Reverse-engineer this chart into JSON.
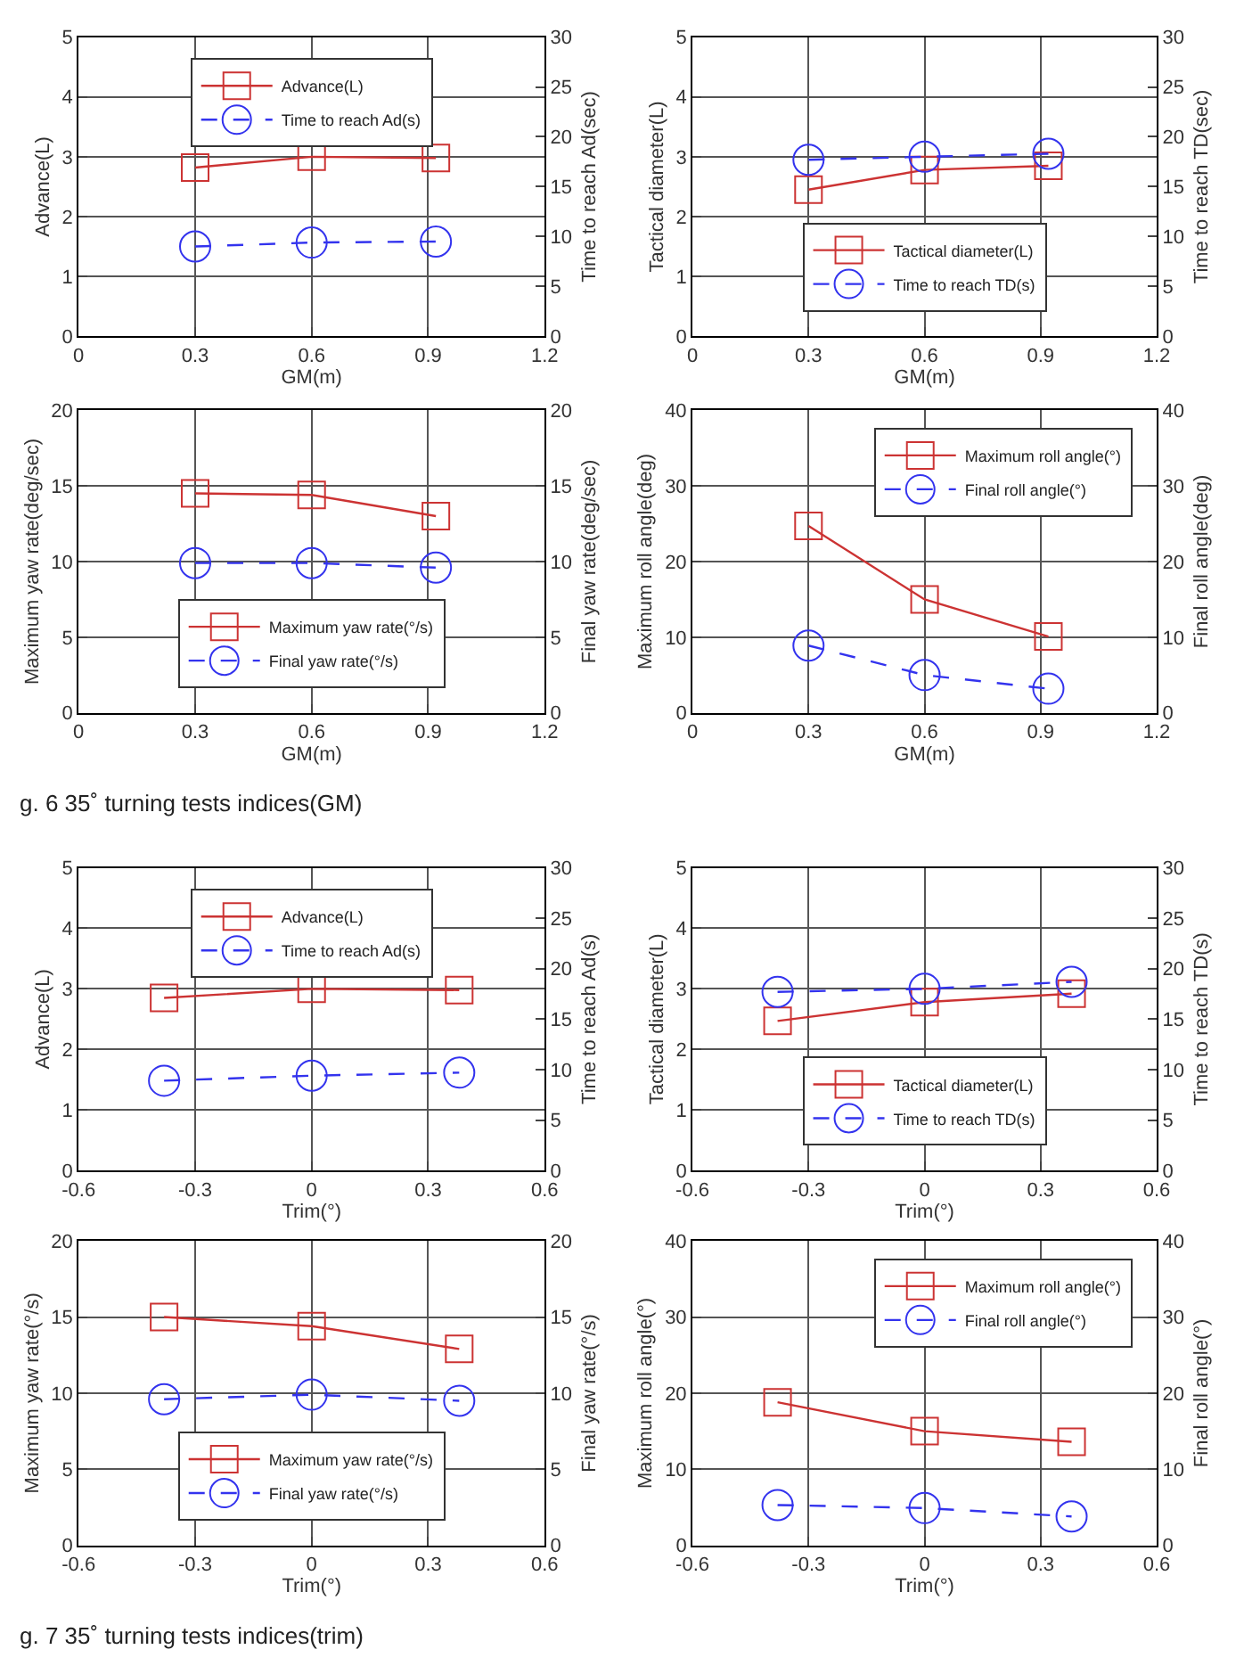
{
  "chart_data": [
    {
      "type": "line",
      "x": [
        0.3,
        0.6,
        0.92
      ],
      "xlabel": "GM(m)",
      "ylabel": "Advance(L)",
      "y2label": "Time to reach Ad(sec)",
      "xlim": [
        0,
        1.2
      ],
      "xticks": [
        0,
        0.3,
        0.6,
        0.9,
        1.2
      ],
      "ylim": [
        0,
        5
      ],
      "yticks": [
        0,
        1,
        2,
        3,
        4,
        5
      ],
      "y2lim": [
        0,
        30
      ],
      "y2ticks": [
        0,
        5,
        10,
        15,
        20,
        25,
        30
      ],
      "grid": true,
      "legend": "top",
      "series": [
        {
          "name": "Advance(L)",
          "color": "#cc3333",
          "values": [
            2.82,
            3.0,
            2.98
          ],
          "marker": "square",
          "line_style": "solid"
        },
        {
          "name": "Time to reach Ad(s)",
          "color": "#3333ee",
          "values": [
            9.0,
            9.4,
            9.5
          ],
          "marker": "circle",
          "line_style": "dashed",
          "axis": "y2"
        }
      ]
    },
    {
      "type": "line",
      "x": [
        0.3,
        0.6,
        0.92
      ],
      "xlabel": "GM(m)",
      "ylabel": "Tactical diameter(L)",
      "y2label": "Time to reach TD(sec)",
      "xlim": [
        0,
        1.2
      ],
      "xticks": [
        0,
        0.3,
        0.6,
        0.9,
        1.2
      ],
      "ylim": [
        0,
        5
      ],
      "yticks": [
        0,
        1,
        2,
        3,
        4,
        5
      ],
      "y2lim": [
        0,
        30
      ],
      "y2ticks": [
        0,
        5,
        10,
        15,
        20,
        25,
        30
      ],
      "grid": true,
      "legend": "bottom",
      "series": [
        {
          "name": "Tactical diameter(L)",
          "color": "#cc3333",
          "values": [
            2.45,
            2.78,
            2.85
          ],
          "marker": "square",
          "line_style": "solid"
        },
        {
          "name": "Time to reach TD(s)",
          "color": "#3333ee",
          "values": [
            17.7,
            18.0,
            18.3
          ],
          "marker": "circle",
          "line_style": "dashed",
          "axis": "y2"
        }
      ]
    },
    {
      "type": "line",
      "x": [
        0.3,
        0.6,
        0.92
      ],
      "xlabel": "GM(m)",
      "ylabel": "Maximum yaw rate(deg/sec)",
      "y2label": "Final yaw rate(deg/sec)",
      "xlim": [
        0,
        1.2
      ],
      "xticks": [
        0,
        0.3,
        0.6,
        0.9,
        1.2
      ],
      "ylim": [
        0,
        20
      ],
      "yticks": [
        0,
        5,
        10,
        15,
        20
      ],
      "y2lim": [
        0,
        20
      ],
      "y2ticks": [
        0,
        5,
        10,
        15,
        20
      ],
      "grid": true,
      "legend": "bottom",
      "annotations": [
        "g. 6 35˚ turning tests indices(GM)"
      ],
      "series": [
        {
          "name": "Maximum yaw rate(°/s)",
          "color": "#cc3333",
          "values": [
            14.5,
            14.4,
            13.0
          ],
          "marker": "square",
          "line_style": "solid"
        },
        {
          "name": "Final yaw rate(°/s)",
          "color": "#3333ee",
          "values": [
            9.9,
            9.9,
            9.6
          ],
          "marker": "circle",
          "line_style": "dashed",
          "axis": "y2"
        }
      ]
    },
    {
      "type": "line",
      "x": [
        0.3,
        0.6,
        0.92
      ],
      "xlabel": "GM(m)",
      "ylabel": "Maximum roll angle(deg)",
      "y2label": "Final roll angle(deg)",
      "xlim": [
        0,
        1.2
      ],
      "xticks": [
        0,
        0.3,
        0.6,
        0.9,
        1.2
      ],
      "ylim": [
        0,
        40
      ],
      "yticks": [
        0,
        10,
        20,
        30,
        40
      ],
      "y2lim": [
        0,
        40
      ],
      "y2ticks": [
        0,
        10,
        20,
        30,
        40
      ],
      "grid": true,
      "legend": "top right",
      "series": [
        {
          "name": "Maximum roll angle(°)",
          "color": "#cc3333",
          "values": [
            24.7,
            15.0,
            10.1
          ],
          "marker": "square",
          "line_style": "solid"
        },
        {
          "name": "Final roll angle(°)",
          "color": "#3333ee",
          "values": [
            8.9,
            5.0,
            3.2
          ],
          "marker": "circle",
          "line_style": "dashed",
          "axis": "y2"
        }
      ]
    },
    {
      "type": "line",
      "x": [
        -0.38,
        0,
        0.38
      ],
      "xlabel": "Trim(°)",
      "ylabel": "Advance(L)",
      "y2label": "Time to reach Ad(s)",
      "xlim": [
        -0.6,
        0.6
      ],
      "xticks": [
        -0.6,
        -0.3,
        0,
        0.3,
        0.6
      ],
      "ylim": [
        0,
        5
      ],
      "yticks": [
        0,
        1,
        2,
        3,
        4,
        5
      ],
      "y2lim": [
        0,
        30
      ],
      "y2ticks": [
        0,
        5,
        10,
        15,
        20,
        25,
        30
      ],
      "grid": true,
      "legend": "top",
      "series": [
        {
          "name": "Advance(L)",
          "color": "#cc3333",
          "values": [
            2.85,
            3.0,
            2.98
          ],
          "marker": "square",
          "line_style": "solid"
        },
        {
          "name": "Time to reach Ad(s)",
          "color": "#3333ee",
          "values": [
            8.9,
            9.4,
            9.7
          ],
          "marker": "circle",
          "line_style": "dashed",
          "axis": "y2"
        }
      ]
    },
    {
      "type": "line",
      "x": [
        -0.38,
        0,
        0.38
      ],
      "xlabel": "Trim(°)",
      "ylabel": "Tactical diameter(L)",
      "y2label": "Time to reach TD(s)",
      "xlim": [
        -0.6,
        0.6
      ],
      "xticks": [
        -0.6,
        -0.3,
        0,
        0.3,
        0.6
      ],
      "ylim": [
        0,
        5
      ],
      "yticks": [
        0,
        1,
        2,
        3,
        4,
        5
      ],
      "y2lim": [
        0,
        30
      ],
      "y2ticks": [
        0,
        5,
        10,
        15,
        20,
        25,
        30
      ],
      "grid": true,
      "legend": "bottom",
      "series": [
        {
          "name": "Tactical diameter(L)",
          "color": "#cc3333",
          "values": [
            2.47,
            2.78,
            2.92
          ],
          "marker": "square",
          "line_style": "solid"
        },
        {
          "name": "Time to reach TD(s)",
          "color": "#3333ee",
          "values": [
            17.7,
            18.0,
            18.7
          ],
          "marker": "circle",
          "line_style": "dashed",
          "axis": "y2"
        }
      ]
    },
    {
      "type": "line",
      "x": [
        -0.38,
        0,
        0.38
      ],
      "xlabel": "Trim(°)",
      "ylabel": "Maximum yaw rate(°/s)",
      "y2label": "Final yaw rate(°/s)",
      "xlim": [
        -0.6,
        0.6
      ],
      "xticks": [
        -0.6,
        -0.3,
        0,
        0.3,
        0.6
      ],
      "ylim": [
        0,
        20
      ],
      "yticks": [
        0,
        5,
        10,
        15,
        20
      ],
      "y2lim": [
        0,
        20
      ],
      "y2ticks": [
        0,
        5,
        10,
        15,
        20
      ],
      "grid": true,
      "legend": "bottom",
      "annotations": [
        "g. 7 35˚ turning tests indices(trim)"
      ],
      "series": [
        {
          "name": "Maximum yaw rate(°/s)",
          "color": "#cc3333",
          "values": [
            15.0,
            14.4,
            12.9
          ],
          "marker": "square",
          "line_style": "solid"
        },
        {
          "name": "Final yaw rate(°/s)",
          "color": "#3333ee",
          "values": [
            9.6,
            9.9,
            9.5
          ],
          "marker": "circle",
          "line_style": "dashed",
          "axis": "y2"
        }
      ]
    },
    {
      "type": "line",
      "x": [
        -0.38,
        0,
        0.38
      ],
      "xlabel": "Trim(°)",
      "ylabel": "Maximum roll angle(°)",
      "y2label": "Final roll angle(°)",
      "xlim": [
        -0.6,
        0.6
      ],
      "xticks": [
        -0.6,
        -0.3,
        0,
        0.3,
        0.6
      ],
      "ylim": [
        0,
        40
      ],
      "yticks": [
        0,
        10,
        20,
        30,
        40
      ],
      "y2lim": [
        0,
        40
      ],
      "y2ticks": [
        0,
        10,
        20,
        30,
        40
      ],
      "grid": true,
      "legend": "top right",
      "series": [
        {
          "name": "Maximum roll angle(°)",
          "color": "#cc3333",
          "values": [
            18.8,
            15.0,
            13.6
          ],
          "marker": "square",
          "line_style": "solid"
        },
        {
          "name": "Final roll angle(°)",
          "color": "#3333ee",
          "values": [
            5.3,
            4.9,
            3.8
          ],
          "marker": "circle",
          "line_style": "dashed",
          "axis": "y2"
        }
      ]
    }
  ]
}
